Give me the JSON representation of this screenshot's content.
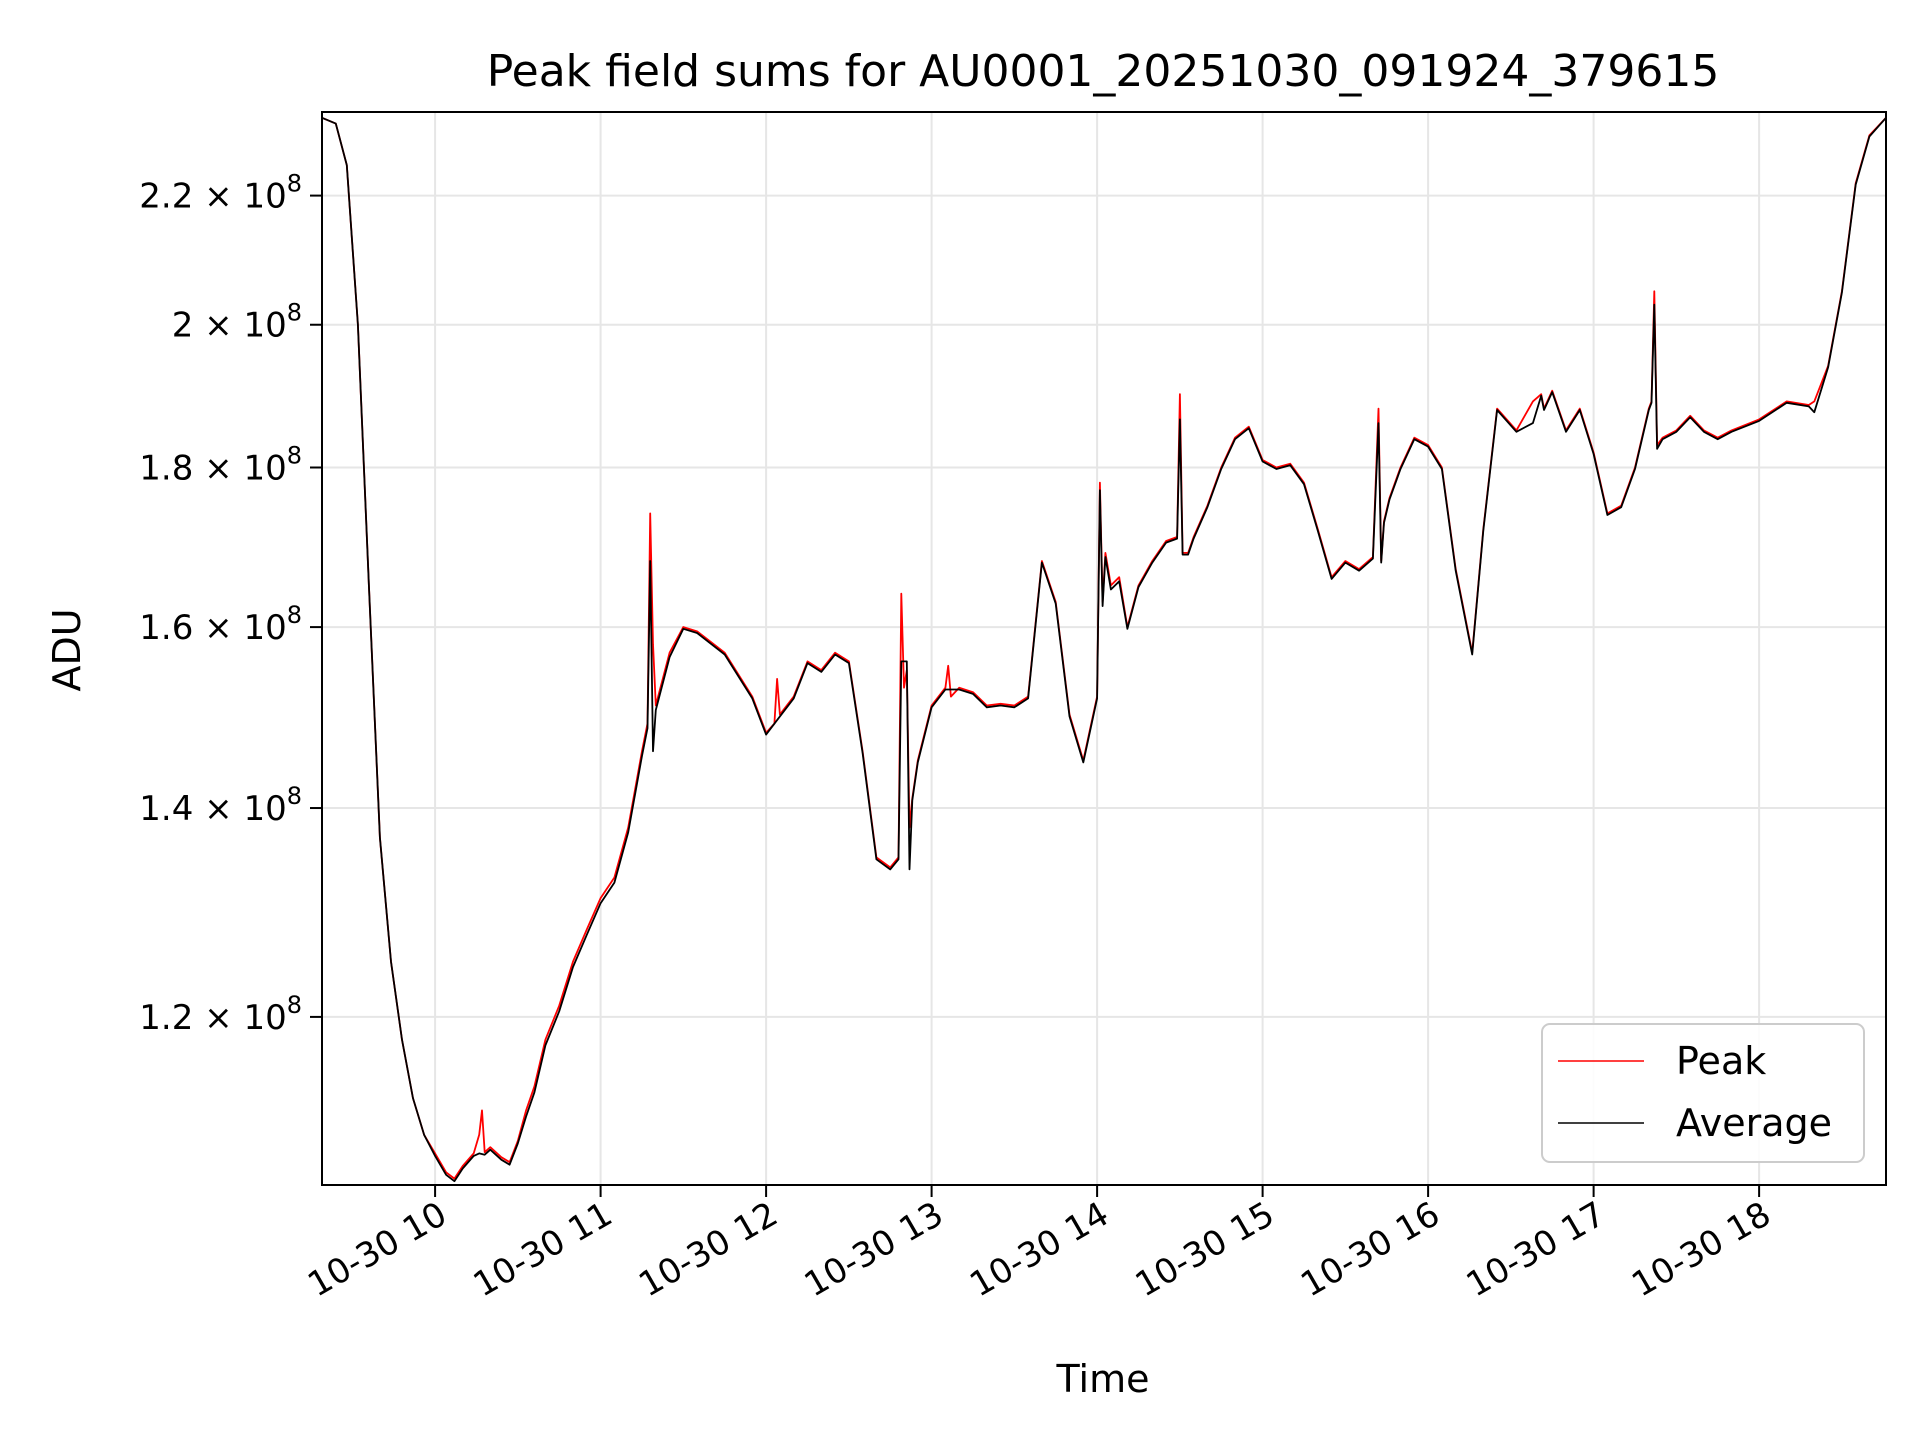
{
  "chart_data": {
    "type": "line",
    "title": "Peak field sums for AU0001_20251030_091924_379615",
    "xlabel": "Time",
    "ylabel": "ADU",
    "y_scale": "log",
    "xlim": [
      "2025-10-30 09:19",
      "2025-10-30 18:46"
    ],
    "ylim": [
      106000000,
      234000000
    ],
    "grid": true,
    "legend_position": "lower-right",
    "x_ticks": [
      {
        "value": "2025-10-30 10:00",
        "label": "10-30 10"
      },
      {
        "value": "2025-10-30 11:00",
        "label": "10-30 11"
      },
      {
        "value": "2025-10-30 12:00",
        "label": "10-30 12"
      },
      {
        "value": "2025-10-30 13:00",
        "label": "10-30 13"
      },
      {
        "value": "2025-10-30 14:00",
        "label": "10-30 14"
      },
      {
        "value": "2025-10-30 15:00",
        "label": "10-30 15"
      },
      {
        "value": "2025-10-30 16:00",
        "label": "10-30 16"
      },
      {
        "value": "2025-10-30 17:00",
        "label": "10-30 17"
      },
      {
        "value": "2025-10-30 18:00",
        "label": "10-30 18"
      }
    ],
    "y_ticks": [
      {
        "value": 120000000,
        "mantissa": "1.2"
      },
      {
        "value": 140000000,
        "mantissa": "1.4"
      },
      {
        "value": 160000000,
        "mantissa": "1.6"
      },
      {
        "value": 180000000,
        "mantissa": "1.8"
      },
      {
        "value": 200000000,
        "mantissa": "2"
      },
      {
        "value": 220000000,
        "mantissa": "2.2"
      }
    ],
    "y_tick_suffix": "× 10",
    "y_tick_exponent": "8",
    "series": [
      {
        "name": "Peak",
        "color": "#ff0000",
        "x": [
          "2025-10-30 09:19",
          "2025-10-30 09:24",
          "2025-10-30 09:28",
          "2025-10-30 09:32",
          "2025-10-30 09:36",
          "2025-10-30 09:40",
          "2025-10-30 09:44",
          "2025-10-30 09:48",
          "2025-10-30 09:52",
          "2025-10-30 09:56",
          "2025-10-30 10:00",
          "2025-10-30 10:04",
          "2025-10-30 10:07",
          "2025-10-30 10:10",
          "2025-10-30 10:14",
          "2025-10-30 10:16",
          "2025-10-30 10:17",
          "2025-10-30 10:18",
          "2025-10-30 10:20",
          "2025-10-30 10:24",
          "2025-10-30 10:27",
          "2025-10-30 10:30",
          "2025-10-30 10:33",
          "2025-10-30 10:36",
          "2025-10-30 10:40",
          "2025-10-30 10:45",
          "2025-10-30 10:50",
          "2025-10-30 10:55",
          "2025-10-30 11:00",
          "2025-10-30 11:05",
          "2025-10-30 11:10",
          "2025-10-30 11:15",
          "2025-10-30 11:17",
          "2025-10-30 11:18",
          "2025-10-30 11:19",
          "2025-10-30 11:20",
          "2025-10-30 11:25",
          "2025-10-30 11:30",
          "2025-10-30 11:35",
          "2025-10-30 11:45",
          "2025-10-30 11:55",
          "2025-10-30 12:00",
          "2025-10-30 12:03",
          "2025-10-30 12:04",
          "2025-10-30 12:05",
          "2025-10-30 12:10",
          "2025-10-30 12:15",
          "2025-10-30 12:20",
          "2025-10-30 12:25",
          "2025-10-30 12:30",
          "2025-10-30 12:35",
          "2025-10-30 12:40",
          "2025-10-30 12:45",
          "2025-10-30 12:48",
          "2025-10-30 12:49",
          "2025-10-30 12:50",
          "2025-10-30 12:51",
          "2025-10-30 12:52",
          "2025-10-30 12:53",
          "2025-10-30 12:55",
          "2025-10-30 13:00",
          "2025-10-30 13:05",
          "2025-10-30 13:06",
          "2025-10-30 13:07",
          "2025-10-30 13:10",
          "2025-10-30 13:15",
          "2025-10-30 13:20",
          "2025-10-30 13:25",
          "2025-10-30 13:30",
          "2025-10-30 13:35",
          "2025-10-30 13:40",
          "2025-10-30 13:45",
          "2025-10-30 13:50",
          "2025-10-30 13:55",
          "2025-10-30 14:00",
          "2025-10-30 14:01",
          "2025-10-30 14:02",
          "2025-10-30 14:03",
          "2025-10-30 14:05",
          "2025-10-30 14:08",
          "2025-10-30 14:11",
          "2025-10-30 14:15",
          "2025-10-30 14:20",
          "2025-10-30 14:25",
          "2025-10-30 14:29",
          "2025-10-30 14:30",
          "2025-10-30 14:31",
          "2025-10-30 14:33",
          "2025-10-30 14:35",
          "2025-10-30 14:40",
          "2025-10-30 14:45",
          "2025-10-30 14:50",
          "2025-10-30 14:55",
          "2025-10-30 15:00",
          "2025-10-30 15:05",
          "2025-10-30 15:10",
          "2025-10-30 15:15",
          "2025-10-30 15:20",
          "2025-10-30 15:25",
          "2025-10-30 15:30",
          "2025-10-30 15:35",
          "2025-10-30 15:40",
          "2025-10-30 15:42",
          "2025-10-30 15:43",
          "2025-10-30 15:44",
          "2025-10-30 15:46",
          "2025-10-30 15:50",
          "2025-10-30 15:55",
          "2025-10-30 16:00",
          "2025-10-30 16:05",
          "2025-10-30 16:10",
          "2025-10-30 16:16",
          "2025-10-30 16:20",
          "2025-10-30 16:25",
          "2025-10-30 16:32",
          "2025-10-30 16:38",
          "2025-10-30 16:41",
          "2025-10-30 16:42",
          "2025-10-30 16:45",
          "2025-10-30 16:50",
          "2025-10-30 16:55",
          "2025-10-30 17:00",
          "2025-10-30 17:05",
          "2025-10-30 17:10",
          "2025-10-30 17:15",
          "2025-10-30 17:20",
          "2025-10-30 17:21",
          "2025-10-30 17:22",
          "2025-10-30 17:23",
          "2025-10-30 17:25",
          "2025-10-30 17:30",
          "2025-10-30 17:35",
          "2025-10-30 17:40",
          "2025-10-30 17:45",
          "2025-10-30 17:50",
          "2025-10-30 18:00",
          "2025-10-30 18:10",
          "2025-10-30 18:18",
          "2025-10-30 18:20",
          "2025-10-30 18:25",
          "2025-10-30 18:30",
          "2025-10-30 18:35",
          "2025-10-30 18:40",
          "2025-10-30 18:46"
        ],
        "values": [
          233000000,
          232000000,
          225000000,
          200000000,
          165000000,
          137000000,
          125000000,
          118000000,
          113000000,
          110000000,
          108500000,
          107000000,
          106500000,
          107500000,
          108500000,
          110000000,
          112000000,
          108600000,
          109000000,
          108200000,
          107800000,
          109500000,
          112000000,
          114000000,
          118000000,
          121000000,
          125000000,
          128000000,
          131000000,
          133000000,
          138000000,
          146000000,
          149000000,
          174000000,
          158000000,
          151000000,
          157000000,
          160000000,
          159500000,
          157000000,
          152000000,
          148000000,
          149000000,
          154000000,
          150000000,
          152000000,
          156000000,
          155000000,
          157000000,
          156000000,
          146000000,
          135000000,
          134000000,
          135000000,
          164000000,
          153000000,
          155000000,
          138000000,
          141000000,
          145000000,
          151000000,
          153000000,
          155500000,
          152000000,
          153000000,
          152500000,
          151000000,
          151200000,
          151000000,
          152000000,
          168000000,
          163000000,
          150000000,
          145000000,
          152000000,
          178000000,
          163000000,
          169000000,
          165000000,
          166000000,
          160000000,
          165000000,
          168000000,
          170500000,
          171000000,
          190000000,
          169000000,
          169000000,
          171000000,
          175000000,
          180000000,
          184000000,
          185500000,
          181000000,
          180000000,
          180500000,
          178000000,
          172000000,
          166000000,
          168000000,
          167000000,
          168500000,
          188000000,
          168000000,
          173000000,
          176000000,
          180000000,
          184000000,
          183000000,
          180000000,
          167000000,
          157000000,
          172000000,
          188000000,
          185000000,
          189000000,
          190000000,
          188000000,
          190500000,
          185000000,
          188000000,
          182000000,
          174000000,
          175000000,
          180000000,
          188000000,
          189000000,
          205000000,
          183000000,
          184000000,
          185000000,
          187000000,
          185000000,
          184000000,
          185000000,
          186500000,
          189000000,
          188500000,
          189000000,
          194000000,
          205000000,
          222000000,
          230000000,
          233000000
        ]
      },
      {
        "name": "Average",
        "color": "#000000",
        "x": [
          "2025-10-30 09:19",
          "2025-10-30 09:24",
          "2025-10-30 09:28",
          "2025-10-30 09:32",
          "2025-10-30 09:36",
          "2025-10-30 09:40",
          "2025-10-30 09:44",
          "2025-10-30 09:48",
          "2025-10-30 09:52",
          "2025-10-30 09:56",
          "2025-10-30 10:00",
          "2025-10-30 10:04",
          "2025-10-30 10:07",
          "2025-10-30 10:10",
          "2025-10-30 10:14",
          "2025-10-30 10:16",
          "2025-10-30 10:18",
          "2025-10-30 10:20",
          "2025-10-30 10:24",
          "2025-10-30 10:27",
          "2025-10-30 10:30",
          "2025-10-30 10:33",
          "2025-10-30 10:36",
          "2025-10-30 10:40",
          "2025-10-30 10:45",
          "2025-10-30 10:50",
          "2025-10-30 10:55",
          "2025-10-30 11:00",
          "2025-10-30 11:05",
          "2025-10-30 11:10",
          "2025-10-30 11:15",
          "2025-10-30 11:17",
          "2025-10-30 11:18",
          "2025-10-30 11:19",
          "2025-10-30 11:20",
          "2025-10-30 11:25",
          "2025-10-30 11:30",
          "2025-10-30 11:35",
          "2025-10-30 11:45",
          "2025-10-30 11:55",
          "2025-10-30 12:00",
          "2025-10-30 12:05",
          "2025-10-30 12:10",
          "2025-10-30 12:15",
          "2025-10-30 12:20",
          "2025-10-30 12:25",
          "2025-10-30 12:30",
          "2025-10-30 12:35",
          "2025-10-30 12:40",
          "2025-10-30 12:45",
          "2025-10-30 12:48",
          "2025-10-30 12:49",
          "2025-10-30 12:51",
          "2025-10-30 12:52",
          "2025-10-30 12:53",
          "2025-10-30 12:55",
          "2025-10-30 13:00",
          "2025-10-30 13:05",
          "2025-10-30 13:10",
          "2025-10-30 13:15",
          "2025-10-30 13:20",
          "2025-10-30 13:25",
          "2025-10-30 13:30",
          "2025-10-30 13:35",
          "2025-10-30 13:40",
          "2025-10-30 13:45",
          "2025-10-30 13:50",
          "2025-10-30 13:55",
          "2025-10-30 14:00",
          "2025-10-30 14:01",
          "2025-10-30 14:02",
          "2025-10-30 14:03",
          "2025-10-30 14:05",
          "2025-10-30 14:08",
          "2025-10-30 14:11",
          "2025-10-30 14:15",
          "2025-10-30 14:20",
          "2025-10-30 14:25",
          "2025-10-30 14:29",
          "2025-10-30 14:30",
          "2025-10-30 14:31",
          "2025-10-30 14:33",
          "2025-10-30 14:35",
          "2025-10-30 14:40",
          "2025-10-30 14:45",
          "2025-10-30 14:50",
          "2025-10-30 14:55",
          "2025-10-30 15:00",
          "2025-10-30 15:05",
          "2025-10-30 15:10",
          "2025-10-30 15:15",
          "2025-10-30 15:20",
          "2025-10-30 15:25",
          "2025-10-30 15:30",
          "2025-10-30 15:35",
          "2025-10-30 15:40",
          "2025-10-30 15:42",
          "2025-10-30 15:43",
          "2025-10-30 15:44",
          "2025-10-30 15:46",
          "2025-10-30 15:50",
          "2025-10-30 15:55",
          "2025-10-30 16:00",
          "2025-10-30 16:05",
          "2025-10-30 16:10",
          "2025-10-30 16:16",
          "2025-10-30 16:20",
          "2025-10-30 16:25",
          "2025-10-30 16:32",
          "2025-10-30 16:38",
          "2025-10-30 16:41",
          "2025-10-30 16:42",
          "2025-10-30 16:45",
          "2025-10-30 16:50",
          "2025-10-30 16:55",
          "2025-10-30 17:00",
          "2025-10-30 17:05",
          "2025-10-30 17:10",
          "2025-10-30 17:15",
          "2025-10-30 17:20",
          "2025-10-30 17:21",
          "2025-10-30 17:22",
          "2025-10-30 17:23",
          "2025-10-30 17:25",
          "2025-10-30 17:30",
          "2025-10-30 17:35",
          "2025-10-30 17:40",
          "2025-10-30 17:45",
          "2025-10-30 17:50",
          "2025-10-30 18:00",
          "2025-10-30 18:10",
          "2025-10-30 18:18",
          "2025-10-30 18:20",
          "2025-10-30 18:25",
          "2025-10-30 18:30",
          "2025-10-30 18:35",
          "2025-10-30 18:40",
          "2025-10-30 18:46"
        ],
        "values": [
          233000000,
          232000000,
          225000000,
          200000000,
          165000000,
          137000000,
          125000000,
          118000000,
          113000000,
          110000000,
          108300000,
          106800000,
          106300000,
          107300000,
          108300000,
          108500000,
          108400000,
          108800000,
          108000000,
          107600000,
          109300000,
          111500000,
          113500000,
          117500000,
          120500000,
          124500000,
          127500000,
          130500000,
          132500000,
          137500000,
          145500000,
          148500000,
          168000000,
          146000000,
          150500000,
          156500000,
          159800000,
          159300000,
          156800000,
          151800000,
          147800000,
          149800000,
          151800000,
          155800000,
          154800000,
          156800000,
          155800000,
          145800000,
          134800000,
          133800000,
          134800000,
          156000000,
          156000000,
          133800000,
          140800000,
          144800000,
          150800000,
          152800000,
          152800000,
          152300000,
          150800000,
          151000000,
          150800000,
          151800000,
          167800000,
          162800000,
          149800000,
          144800000,
          151800000,
          177000000,
          162500000,
          168500000,
          164500000,
          165500000,
          159800000,
          164800000,
          167800000,
          170300000,
          170800000,
          186500000,
          168800000,
          168800000,
          170800000,
          174800000,
          179800000,
          183800000,
          185300000,
          180800000,
          179800000,
          180300000,
          177800000,
          171800000,
          165800000,
          167800000,
          166800000,
          168300000,
          186000000,
          167800000,
          172800000,
          175800000,
          179800000,
          183800000,
          182800000,
          179800000,
          166800000,
          156800000,
          171800000,
          187800000,
          184800000,
          186000000,
          189800000,
          187800000,
          190300000,
          184800000,
          187800000,
          181800000,
          173800000,
          174800000,
          179800000,
          187800000,
          188800000,
          203000000,
          182500000,
          183800000,
          184800000,
          186800000,
          184800000,
          183800000,
          184800000,
          186300000,
          188800000,
          188300000,
          187500000,
          193800000,
          204800000,
          221800000,
          229800000,
          233000000
        ]
      }
    ]
  }
}
